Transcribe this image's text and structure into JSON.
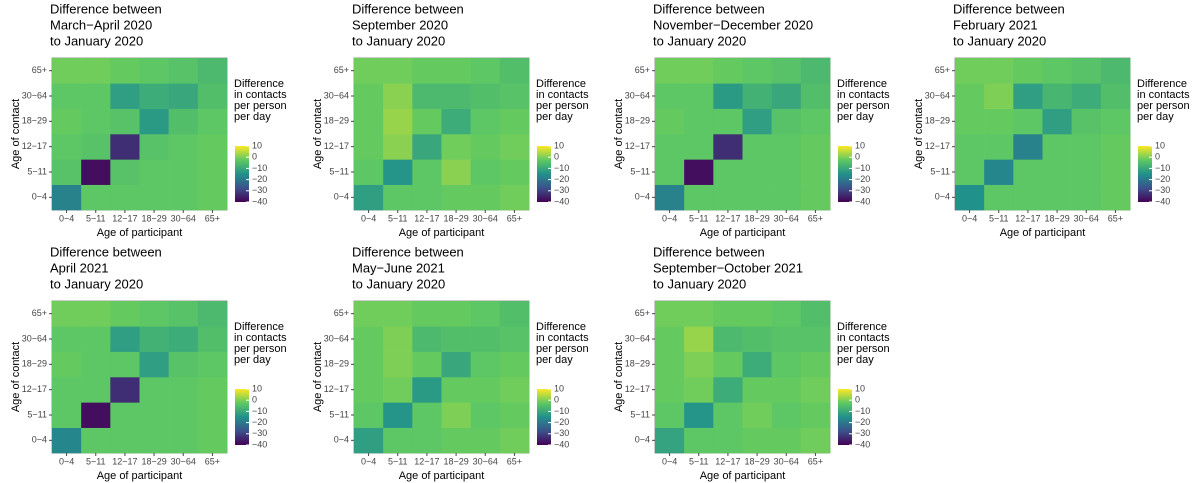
{
  "chart_data": [
    {
      "type": "heatmap",
      "title": [
        "Difference between",
        " March−April 2020",
        "to January 2020"
      ],
      "xlabel": "Age of participant",
      "ylabel": "Age of contact",
      "x": [
        "0−4",
        "5−11",
        "12−17",
        "18−29",
        "30−64",
        "65+"
      ],
      "y": [
        "0−4",
        "5−11",
        "12−17",
        "18−29",
        "30−64",
        "65+"
      ],
      "values": [
        [
          -18,
          -3,
          -3,
          -3,
          -3,
          -2
        ],
        [
          -4,
          -38,
          -4,
          -3,
          -3,
          -2
        ],
        [
          -3,
          -4,
          -33,
          -4,
          -3,
          -2
        ],
        [
          -2,
          -3,
          -4,
          -13,
          -5,
          -3
        ],
        [
          -3,
          -3,
          -12,
          -9,
          -10,
          -5
        ],
        [
          -1,
          -1,
          -2,
          -3,
          -4,
          -6
        ]
      ],
      "colormap": "viridis",
      "zlim": [
        -40,
        10
      ],
      "legend_title": [
        "Difference",
        "in contacts",
        "per person",
        "per day"
      ],
      "zticks": [
        10,
        0,
        {
          "value": -10,
          "label": "−10"
        },
        {
          "value": -20,
          "label": "−20"
        },
        {
          "value": -30,
          "label": "−30"
        },
        {
          "value": -40,
          "label": "−40"
        }
      ]
    },
    {
      "type": "heatmap",
      "title": [
        "Difference between",
        "September 2020",
        "to January 2020"
      ],
      "xlabel": "Age of participant",
      "ylabel": "Age of contact",
      "x": [
        "0−4",
        "5−11",
        "12−17",
        "18−29",
        "30−64",
        "65+"
      ],
      "y": [
        "0−4",
        "5−11",
        "12−17",
        "18−29",
        "30−64",
        "65+"
      ],
      "values": [
        [
          -12,
          -3,
          -3,
          -2,
          -2,
          -1
        ],
        [
          -3,
          -14,
          -3,
          1,
          -3,
          -2
        ],
        [
          -2,
          1,
          -10,
          -1,
          -2,
          -1
        ],
        [
          -2,
          2,
          -2,
          -9,
          -3,
          -2
        ],
        [
          -2,
          1,
          -6,
          -6,
          -5,
          -4
        ],
        [
          -1,
          -1,
          -2,
          -2,
          -3,
          -5
        ]
      ],
      "colormap": "viridis",
      "zlim": [
        -40,
        10
      ],
      "legend_title": [
        "Difference",
        "in contacts",
        "per person",
        "per day"
      ],
      "zticks": [
        10,
        0,
        {
          "value": -10,
          "label": "−10"
        },
        {
          "value": -20,
          "label": "−20"
        },
        {
          "value": -30,
          "label": "−30"
        },
        {
          "value": -40,
          "label": "−40"
        }
      ]
    },
    {
      "type": "heatmap",
      "title": [
        "Difference between",
        " November−December 2020",
        "to January 2020"
      ],
      "xlabel": "Age of participant",
      "ylabel": "Age of contact",
      "x": [
        "0−4",
        "5−11",
        "12−17",
        "18−29",
        "30−64",
        "65+"
      ],
      "y": [
        "0−4",
        "5−11",
        "12−17",
        "18−29",
        "30−64",
        "65+"
      ],
      "values": [
        [
          -18,
          -3,
          -3,
          -3,
          -3,
          -2
        ],
        [
          -3,
          -38,
          -3,
          -3,
          -3,
          -2
        ],
        [
          -3,
          -3,
          -33,
          -3,
          -3,
          -2
        ],
        [
          -2,
          -3,
          -3,
          -12,
          -4,
          -3
        ],
        [
          -3,
          -3,
          -13,
          -8,
          -10,
          -5
        ],
        [
          -1,
          -1,
          -2,
          -3,
          -4,
          -6
        ]
      ],
      "colormap": "viridis",
      "zlim": [
        -40,
        10
      ],
      "legend_title": [
        "Difference",
        "in contacts",
        "per person",
        "per day"
      ],
      "zticks": [
        10,
        0,
        {
          "value": -10,
          "label": "−10"
        },
        {
          "value": -20,
          "label": "−20"
        },
        {
          "value": -30,
          "label": "−30"
        },
        {
          "value": -40,
          "label": "−40"
        }
      ]
    },
    {
      "type": "heatmap",
      "title": [
        "Difference between",
        "February 2021",
        "to January 2020"
      ],
      "xlabel": "Age of participant",
      "ylabel": "Age of contact",
      "x": [
        "0−4",
        "5−11",
        "12−17",
        "18−29",
        "30−64",
        "65+"
      ],
      "y": [
        "0−4",
        "5−11",
        "12−17",
        "18−29",
        "30−64",
        "65+"
      ],
      "values": [
        [
          -15,
          -3,
          -3,
          -3,
          -3,
          -2
        ],
        [
          -3,
          -17,
          -3,
          -3,
          -3,
          -2
        ],
        [
          -3,
          -3,
          -18,
          -3,
          -3,
          -2
        ],
        [
          -2,
          -2,
          -3,
          -12,
          -4,
          -3
        ],
        [
          -2,
          0,
          -12,
          -7,
          -9,
          -5
        ],
        [
          -1,
          -1,
          -2,
          -3,
          -4,
          -6
        ]
      ],
      "colormap": "viridis",
      "zlim": [
        -40,
        10
      ],
      "legend_title": [
        "Difference",
        "in contacts",
        "per person",
        "per day"
      ],
      "zticks": [
        10,
        0,
        {
          "value": -10,
          "label": "−10"
        },
        {
          "value": -20,
          "label": "−20"
        },
        {
          "value": -30,
          "label": "−30"
        },
        {
          "value": -40,
          "label": "−40"
        }
      ]
    },
    {
      "type": "heatmap",
      "title": [
        "Difference between",
        " April 2021",
        "to January 2020"
      ],
      "xlabel": "Age of participant",
      "ylabel": "Age of contact",
      "x": [
        "0−4",
        "5−11",
        "12−17",
        "18−29",
        "30−64",
        "65+"
      ],
      "y": [
        "0−4",
        "5−11",
        "12−17",
        "18−29",
        "30−64",
        "65+"
      ],
      "values": [
        [
          -17,
          -3,
          -3,
          -3,
          -3,
          -2
        ],
        [
          -3,
          -38,
          -3,
          -3,
          -3,
          -2
        ],
        [
          -3,
          -3,
          -33,
          -3,
          -3,
          -2
        ],
        [
          -2,
          -3,
          -3,
          -12,
          -4,
          -3
        ],
        [
          -3,
          -3,
          -12,
          -8,
          -9,
          -5
        ],
        [
          -1,
          -1,
          -2,
          -3,
          -4,
          -6
        ]
      ],
      "colormap": "viridis",
      "zlim": [
        -40,
        10
      ],
      "legend_title": [
        "Difference",
        "in contacts",
        "per person",
        "per day"
      ],
      "zticks": [
        10,
        0,
        {
          "value": -10,
          "label": "−10"
        },
        {
          "value": -20,
          "label": "−20"
        },
        {
          "value": -30,
          "label": "−30"
        },
        {
          "value": -40,
          "label": "−40"
        }
      ]
    },
    {
      "type": "heatmap",
      "title": [
        "Difference between",
        " May−June 2021",
        "to January 2020"
      ],
      "xlabel": "Age of participant",
      "ylabel": "Age of contact",
      "x": [
        "0−4",
        "5−11",
        "12−17",
        "18−29",
        "30−64",
        "65+"
      ],
      "y": [
        "0−4",
        "5−11",
        "12−17",
        "18−29",
        "30−64",
        "65+"
      ],
      "values": [
        [
          -12,
          -3,
          -3,
          -2,
          -2,
          -1
        ],
        [
          -3,
          -14,
          -3,
          0,
          -3,
          -2
        ],
        [
          -2,
          -1,
          -13,
          -2,
          -2,
          -1
        ],
        [
          -2,
          0,
          -2,
          -10,
          -3,
          -2
        ],
        [
          -2,
          0,
          -6,
          -5,
          -5,
          -4
        ],
        [
          -1,
          -1,
          -2,
          -2,
          -3,
          -5
        ]
      ],
      "colormap": "viridis",
      "zlim": [
        -40,
        10
      ],
      "legend_title": [
        "Difference",
        "in contacts",
        "per person",
        "per day"
      ],
      "zticks": [
        10,
        0,
        {
          "value": -10,
          "label": "−10"
        },
        {
          "value": -20,
          "label": "−20"
        },
        {
          "value": -30,
          "label": "−30"
        },
        {
          "value": -40,
          "label": "−40"
        }
      ]
    },
    {
      "type": "heatmap",
      "title": [
        "Difference between",
        " September−October 2021",
        "to January 2020"
      ],
      "xlabel": "Age of participant",
      "ylabel": "Age of contact",
      "x": [
        "0−4",
        "5−11",
        "12−17",
        "18−29",
        "30−64",
        "65+"
      ],
      "y": [
        "0−4",
        "5−11",
        "12−17",
        "18−29",
        "30−64",
        "65+"
      ],
      "values": [
        [
          -11,
          -3,
          -3,
          -2,
          -2,
          -1
        ],
        [
          -3,
          -14,
          -3,
          -1,
          -3,
          -2
        ],
        [
          -2,
          -1,
          -9,
          -2,
          -2,
          -1
        ],
        [
          -2,
          0,
          -2,
          -9,
          -3,
          -2
        ],
        [
          -2,
          2,
          -6,
          -5,
          -4,
          -4
        ],
        [
          -1,
          -1,
          -2,
          -2,
          -3,
          -5
        ]
      ],
      "colormap": "viridis",
      "zlim": [
        -40,
        10
      ],
      "legend_title": [
        "Difference",
        "in contacts",
        "per person",
        "per day"
      ],
      "zticks": [
        10,
        0,
        {
          "value": -10,
          "label": "−10"
        },
        {
          "value": -20,
          "label": "−20"
        },
        {
          "value": -30,
          "label": "−30"
        },
        {
          "value": -40,
          "label": "−40"
        }
      ]
    }
  ]
}
